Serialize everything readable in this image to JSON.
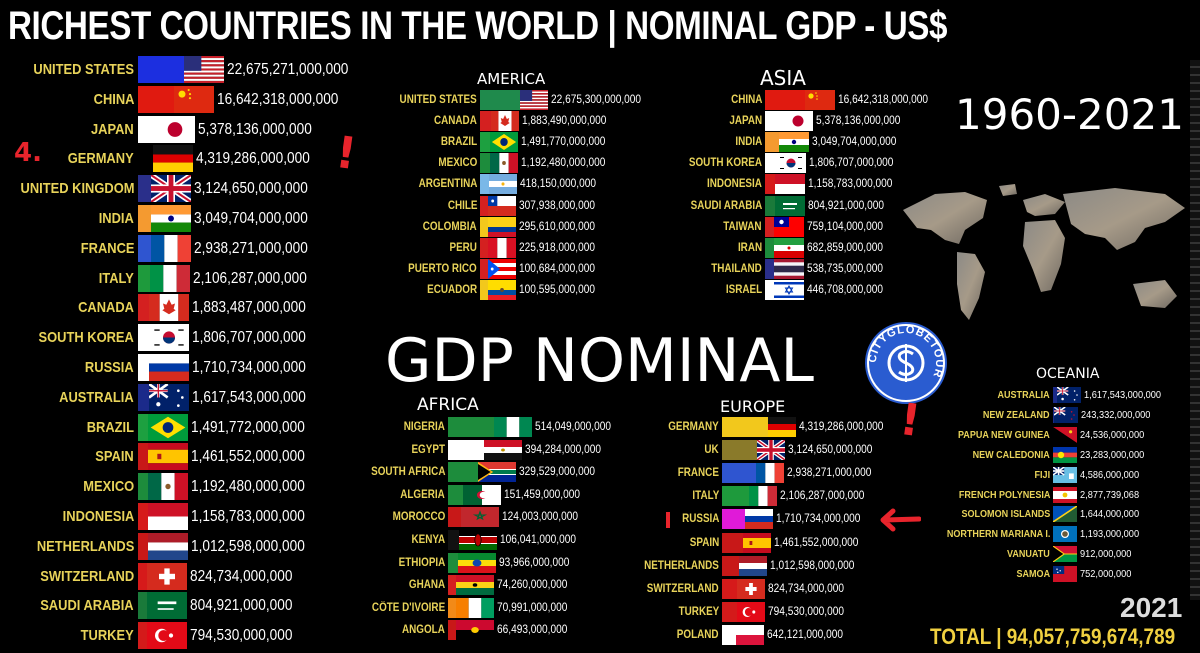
{
  "title": "RICHEST COUNTRIES IN THE WORLD | NOMINAL GDP - US$",
  "period": "1960-2021",
  "center_label": "GDP NOMINAL",
  "logo_text": "CITYGLOBETOUR",
  "year": "2021",
  "total": "TOTAL | 94,057,759,674,789",
  "annotations": {
    "rank_mark": "4.",
    "exclaim": "!"
  },
  "colors": {
    "label": "#e8d35a",
    "value": "#ffffff",
    "annotation": "#e8242c",
    "background": "#000000"
  },
  "chart_data": [
    {
      "type": "bar",
      "title": "",
      "region": "WORLD",
      "categories": [
        "UNITED STATES",
        "CHINA",
        "JAPAN",
        "GERMANY",
        "UNITED KINGDOM",
        "INDIA",
        "FRANCE",
        "ITALY",
        "CANADA",
        "SOUTH KOREA",
        "RUSSIA",
        "AUSTRALIA",
        "BRAZIL",
        "SPAIN",
        "MEXICO",
        "INDONESIA",
        "NETHERLANDS",
        "SWITZERLAND",
        "SAUDI ARABIA",
        "TURKEY"
      ],
      "values": [
        22675271000000,
        16642318000000,
        5378136000000,
        4319286000000,
        3124650000000,
        3049704000000,
        2938271000000,
        2106287000000,
        1883487000000,
        1806707000000,
        1710734000000,
        1617543000000,
        1491772000000,
        1461552000000,
        1192480000000,
        1158783000000,
        1012598000000,
        824734000000,
        804921000000,
        794530000000
      ],
      "value_labels": [
        "22,675,271,000,000",
        "16,642,318,000,000",
        "5,378,136,000,000",
        "4,319,286,000,000",
        "3,124,650,000,000",
        "3,049,704,000,000",
        "2,938,271,000,000",
        "2,106,287,000,000",
        "1,883,487,000,000",
        "1,806,707,000,000",
        "1,710,734,000,000",
        "1,617,543,000,000",
        "1,491,772,000,000",
        "1,461,552,000,000",
        "1,192,480,000,000",
        "1,158,783,000,000",
        "1,012,598,000,000",
        "824,734,000,000",
        "804,921,000,000",
        "794,530,000,000"
      ],
      "bar_colors": [
        "#1c2fe0",
        "#e01a10",
        "#ffffff",
        "#000000",
        "#2a2f8a",
        "#f49a30",
        "#2f55d0",
        "#1e9a3c",
        "#d42020",
        "#ffffff",
        "#ffffff",
        "#1b2a8a",
        "#1da040",
        "#c81818",
        "#1d8c3c",
        "#d61a1a",
        "#c81818",
        "#d61a1a",
        "#1a7a3a",
        "#d41a1a"
      ],
      "flags": [
        "us",
        "cn",
        "jp",
        "de",
        "gb",
        "in",
        "fr",
        "it",
        "ca",
        "kr",
        "ru",
        "au",
        "br",
        "es",
        "mx",
        "id",
        "nl",
        "ch",
        "sa",
        "tr"
      ]
    },
    {
      "type": "bar",
      "title": "AMERICA",
      "categories": [
        "UNITED STATES",
        "CANADA",
        "BRAZIL",
        "MEXICO",
        "ARGENTINA",
        "CHILE",
        "COLOMBIA",
        "PERU",
        "PUERTO RICO",
        "ECUADOR"
      ],
      "values": [
        22675300000000,
        1883490000000,
        1491770000000,
        1192480000000,
        418150000000,
        307938000000,
        295610000000,
        225918000000,
        100684000000,
        100595000000
      ],
      "value_labels": [
        "22,675,300,000,000",
        "1,883,490,000,000",
        "1,491,770,000,000",
        "1,192,480,000,000",
        "418,150,000,000",
        "307,938,000,000",
        "295,610,000,000",
        "225,918,000,000",
        "100,684,000,000",
        "100,595,000,000"
      ],
      "bar_colors": [
        "#1f8a4c",
        "#d42020",
        "#1da040",
        "#1d8c3c",
        "#7ab8e8",
        "#d42020",
        "#f2c81c",
        "#d42020",
        "#d42020",
        "#f2c81c"
      ],
      "flags": [
        "us",
        "ca",
        "br",
        "mx",
        "ar",
        "cl",
        "co",
        "pe",
        "pr",
        "ec"
      ]
    },
    {
      "type": "bar",
      "title": "ASIA",
      "categories": [
        "CHINA",
        "JAPAN",
        "INDIA",
        "SOUTH KOREA",
        "INDONESIA",
        "SAUDI ARABIA",
        "TAIWAN",
        "IRAN",
        "THAILAND",
        "ISRAEL"
      ],
      "values": [
        16642318000000,
        5378136000000,
        3049704000000,
        1806707000000,
        1158783000000,
        804921000000,
        759104000000,
        682859000000,
        538735000000,
        446708000000
      ],
      "value_labels": [
        "16,642,318,000,000",
        "5,378,136,000,000",
        "3,049,704,000,000",
        "1,806,707,000,000",
        "1,158,783,000,000",
        "804,921,000,000",
        "759,104,000,000",
        "682,859,000,000",
        "538,735,000,000",
        "446,708,000,000"
      ],
      "bar_colors": [
        "#e01a10",
        "#ffffff",
        "#f49a30",
        "#ffffff",
        "#d61a1a",
        "#1a7a3a",
        "#d42020",
        "#1d8c3c",
        "#2a2f8a",
        "#ffffff"
      ],
      "flags": [
        "cn",
        "jp",
        "in",
        "kr",
        "id",
        "sa",
        "tw",
        "ir",
        "th",
        "il"
      ]
    },
    {
      "type": "bar",
      "title": "AFRICA",
      "categories": [
        "NIGERIA",
        "EGYPT",
        "SOUTH AFRICA",
        "ALGERIA",
        "MOROCCO",
        "KENYA",
        "ETHIOPIA",
        "GHANA",
        "CÔTE D'IVOIRE",
        "ANGOLA"
      ],
      "values": [
        514049000000,
        394284000000,
        329529000000,
        151459000000,
        124003000000,
        106041000000,
        93966000000,
        74260000000,
        70991000000,
        66493000000
      ],
      "value_labels": [
        "514,049,000,000",
        "394,284,000,000",
        "329,529,000,000",
        "151,459,000,000",
        "124,003,000,000",
        "106,041,000,000",
        "93,966,000,000",
        "74,260,000,000",
        "70,991,000,000",
        "66,493,000,000"
      ],
      "bar_colors": [
        "#1d8c3c",
        "#ffffff",
        "#1d8c3c",
        "#1d8c3c",
        "#c81818",
        "#111111",
        "#1d8c3c",
        "#d42020",
        "#f28a18",
        "#c81818"
      ],
      "flags": [
        "ng",
        "eg",
        "za",
        "dz",
        "ma",
        "ke",
        "et",
        "gh",
        "ci",
        "ao"
      ]
    },
    {
      "type": "bar",
      "title": "EUROPE",
      "categories": [
        "GERMANY",
        "UK",
        "FRANCE",
        "ITALY",
        "RUSSIA",
        "SPAIN",
        "NETHERLANDS",
        "SWITZERLAND",
        "TURKEY",
        "POLAND"
      ],
      "values": [
        4319286000000,
        3124650000000,
        2938271000000,
        2106287000000,
        1710734000000,
        1461552000000,
        1012598000000,
        824734000000,
        794530000000,
        642121000000
      ],
      "value_labels": [
        "4,319,286,000,000",
        "3,124,650,000,000",
        "2,938,271,000,000",
        "2,106,287,000,000",
        "1,710,734,000,000",
        "1,461,552,000,000",
        "1,012,598,000,000",
        "824,734,000,000",
        "794,530,000,000",
        "642,121,000,000"
      ],
      "bar_colors": [
        "#f2c81c",
        "#8a7a2a",
        "#2f55d0",
        "#1e9a3c",
        "#e01ad8",
        "#c81818",
        "#c81818",
        "#d61a1a",
        "#d41a1a",
        "#ffffff"
      ],
      "flags": [
        "de",
        "gb",
        "fr",
        "it",
        "ru",
        "es",
        "nl",
        "ch",
        "tr",
        "pl"
      ]
    },
    {
      "type": "bar",
      "title": "OCEANIA",
      "categories": [
        "AUSTRALIA",
        "NEW ZEALAND",
        "PAPUA NEW GUINEA",
        "NEW CALEDONIA",
        "FIJI",
        "FRENCH POLYNESIA",
        "SOLOMON ISLANDS",
        "NORTHERN MARIANA I.",
        "VANUATU",
        "SAMOA"
      ],
      "values": [
        1617543000000,
        243332000000,
        24536000000,
        23283000000,
        4586000000,
        2877739068,
        1644000000,
        1193000000,
        912000000,
        752000000
      ],
      "value_labels": [
        "1,617,543,000,000",
        "243,332,000,000",
        "24,536,000,000",
        "23,283,000,000",
        "4,586,000,000",
        "2,877,739,068",
        "1,644,000,000",
        "1,193,000,000",
        "912,000,000",
        "752,000,000"
      ],
      "bar_colors": [
        "#1b2a8a",
        "#1b2a8a",
        "#c81818",
        "#2a4ab8",
        "#6aa8e0",
        "#d42020",
        "#1a7ab8",
        "#2a4ab8",
        "#1d8c3c",
        "#c81818"
      ],
      "flags": [
        "au",
        "nz",
        "pg",
        "nc",
        "fj",
        "pf",
        "sb",
        "mp",
        "vu",
        "ws"
      ]
    }
  ]
}
